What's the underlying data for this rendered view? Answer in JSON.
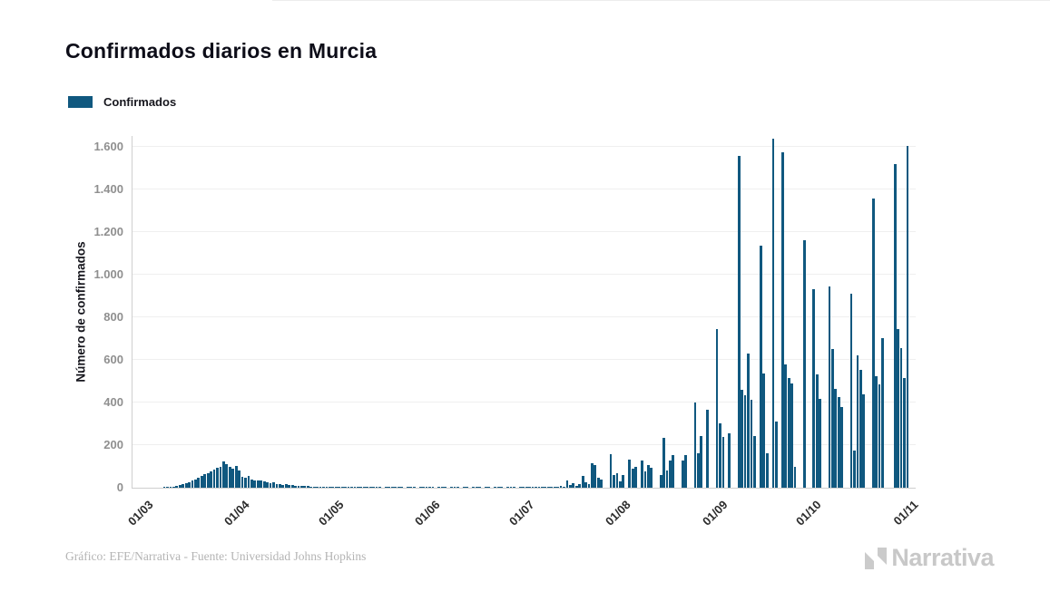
{
  "page": {
    "background": "#ffffff"
  },
  "header": {
    "title": "Confirmados diarios en Murcia"
  },
  "legend": {
    "items": [
      {
        "label": "Confirmados",
        "color": "#10587f"
      }
    ]
  },
  "chart_data": {
    "type": "bar",
    "title": "Confirmados diarios en Murcia",
    "series_name": "Confirmados",
    "xlabel": "",
    "ylabel": "Número de confirmados",
    "x_tick_labels": [
      "01/03",
      "01/04",
      "01/05",
      "01/06",
      "01/07",
      "01/08",
      "01/09",
      "01/10",
      "01/11"
    ],
    "x_tick_day_index": [
      0,
      31,
      61,
      92,
      122,
      153,
      184,
      214,
      245
    ],
    "y_tick_labels": [
      "0",
      "200",
      "400",
      "600",
      "800",
      "1.000",
      "1.200",
      "1.400",
      "1.600"
    ],
    "y_tick_values": [
      0,
      200,
      400,
      600,
      800,
      1000,
      1200,
      1400,
      1600
    ],
    "ylim": [
      0,
      1650
    ],
    "grid": true,
    "legend_position": "top-left",
    "bar_color": "#10587f",
    "values": [
      0,
      0,
      0,
      0,
      0,
      0,
      1,
      1,
      2,
      4,
      8,
      12,
      15,
      20,
      26,
      33,
      40,
      46,
      54,
      62,
      70,
      78,
      85,
      92,
      100,
      123,
      110,
      96,
      88,
      102,
      80,
      52,
      46,
      55,
      40,
      36,
      32,
      35,
      28,
      25,
      22,
      24,
      19,
      16,
      14,
      15,
      11,
      12,
      10,
      8,
      9,
      7,
      8,
      6,
      5,
      6,
      4,
      5,
      3,
      4,
      3,
      3,
      2,
      4,
      2,
      1,
      2,
      1,
      3,
      2,
      1,
      2,
      1,
      1,
      2,
      1,
      0,
      2,
      1,
      3,
      1,
      2,
      1,
      0,
      1,
      2,
      1,
      0,
      2,
      1,
      1,
      2,
      1,
      0,
      2,
      1,
      1,
      0,
      2,
      1,
      1,
      0,
      1,
      2,
      0,
      1,
      1,
      2,
      0,
      1,
      1,
      0,
      2,
      1,
      1,
      0,
      2,
      1,
      1,
      0,
      1,
      2,
      2,
      1,
      3,
      2,
      1,
      4,
      2,
      5,
      3,
      6,
      4,
      8,
      5,
      34,
      12,
      21,
      9,
      15,
      55,
      25,
      18,
      115,
      108,
      45,
      40,
      0,
      0,
      159,
      60,
      69,
      30,
      60,
      0,
      133,
      91,
      98,
      0,
      128,
      77,
      107,
      94,
      0,
      0,
      60,
      235,
      81,
      128,
      154,
      0,
      0,
      126,
      154,
      0,
      0,
      399,
      162,
      243,
      0,
      367,
      0,
      0,
      746,
      300,
      240,
      0,
      255,
      0,
      0,
      1557,
      460,
      432,
      631,
      411,
      241,
      0,
      1137,
      535,
      160,
      0,
      1637,
      310,
      0,
      1573,
      580,
      516,
      489,
      98,
      0,
      0,
      1162,
      0,
      0,
      932,
      531,
      417,
      0,
      0,
      945,
      651,
      462,
      424,
      377,
      0,
      0,
      909,
      176,
      622,
      552,
      438,
      0,
      0,
      1358,
      524,
      486,
      700,
      0,
      0,
      0,
      1517,
      746,
      655,
      515,
      1605
    ]
  },
  "footer": {
    "credit": "Gráfico: EFE/Narrativa - Fuente: Universidad Johns Hopkins",
    "brand_name": "Narrativa"
  }
}
